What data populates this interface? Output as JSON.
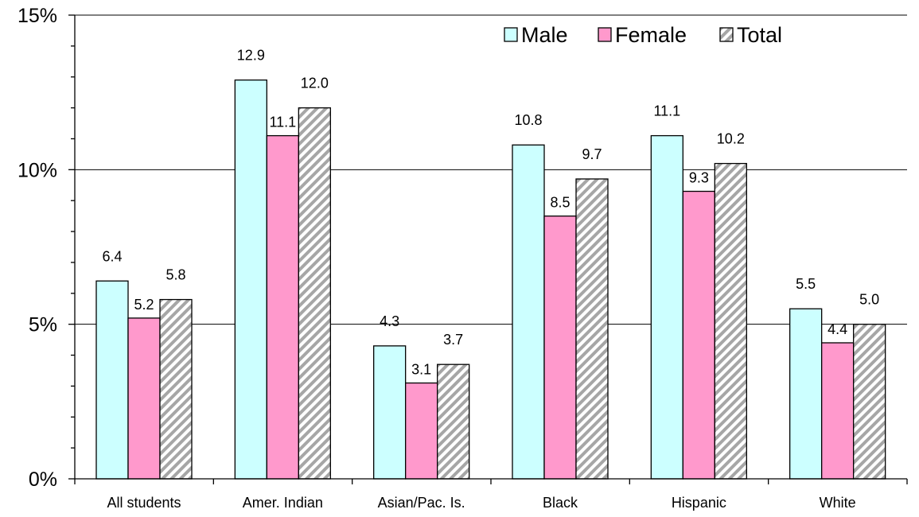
{
  "chart_data": {
    "type": "bar",
    "title": "",
    "xlabel": "",
    "ylabel": "",
    "ylim": [
      0,
      15
    ],
    "y_ticks": [
      "0%",
      "5%",
      "10%",
      "15%"
    ],
    "grid": "horizontal major lines at 5% steps",
    "legend_position": "top-right",
    "categories": [
      "All students",
      "Amer. Indian",
      "Asian/Pac. Is.",
      "Black",
      "Hispanic",
      "White"
    ],
    "series": [
      {
        "name": "Male",
        "color": "#ccffff",
        "values": [
          6.4,
          12.9,
          4.3,
          10.8,
          11.1,
          5.5
        ],
        "labels": [
          "6.4",
          "12.9",
          "4.3",
          "10.8",
          "11.1",
          "5.5"
        ]
      },
      {
        "name": "Female",
        "color": "#ff99cc",
        "values": [
          5.2,
          11.1,
          3.1,
          8.5,
          9.3,
          4.4
        ],
        "labels": [
          "5.2",
          "11.1",
          "3.1",
          "8.5",
          "9.3",
          "4.4"
        ]
      },
      {
        "name": "Total",
        "color": "hatched gray",
        "values": [
          5.8,
          12.0,
          3.7,
          9.7,
          10.2,
          5.0
        ],
        "labels": [
          "5.8",
          "12.0",
          "3.7",
          "9.7",
          "10.2",
          "5.0"
        ]
      }
    ]
  }
}
